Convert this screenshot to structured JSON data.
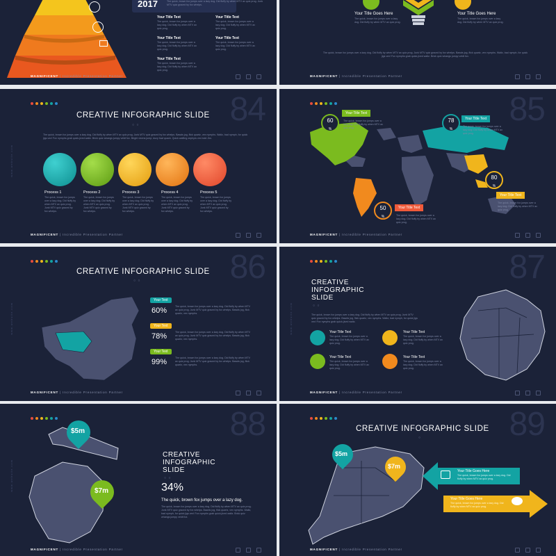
{
  "colors": {
    "bg": "#1b2238",
    "teal": "#13a3a3",
    "green": "#7bbb1f",
    "yellow": "#f0b51c",
    "orange": "#f18a1e",
    "red": "#ef5a3a",
    "blue": "#2b8acb"
  },
  "slides": {
    "s83": {
      "year": "2017",
      "items": [
        {
          "title": "Your Title Text",
          "text": "The quick, brown fox jumps over a lazy dog. Did fluffy by when MTV ax quiz prog."
        },
        {
          "title": "Your Title Text",
          "text": "The quick, brown fox jumps over a lazy dog. Did fluffy by when MTV ax quiz prog."
        },
        {
          "title": "Your Title Text",
          "text": "The quick, brown fox jumps over a lazy dog. Did fluffy by when MTV ax quiz prog."
        },
        {
          "title": "Your Title Text",
          "text": "The quick, brown fox jumps over a lazy dog. Did fluffy by when MTV ax quiz prog."
        },
        {
          "title": "Your Title Text",
          "text": "The quick, brown fox jumps over a lazy dog. Did fluffy by when MTV ax quiz prog."
        }
      ],
      "top_text": "The quick, brown fox jumps over a lazy dog. Did fluffy by when MTV ax quiz prog. Junk MTV quiz graced by fox whelps."
    },
    "s84b": {
      "title_left": "Your Title Goes Here",
      "title_right": "Your Title Goes Here",
      "text_left": "The quick, brown fox jumps over a lazy dog. Did fluffy by when MTV ax quiz prog.",
      "text_right": "The quick, brown fox jumps over a lazy dog. Did fluffy by when MTV ax quiz prog.",
      "bottom_text": "The quick, brown fox jumps over a lazy dog. Did fluffy by when MTV ax quiz prog. Junk MTV quiz graced by fox whelps. Bawds jog, flick quartz, vex nymphs. Waltz, bad nymph, for quick jigs vex! Fox nymphs grab quick-jived waltz. Brick quiz whangs jumpy veldt fox."
    },
    "s84": {
      "number": "84",
      "title": "CREATIVE INFOGRAPHIC SLIDE",
      "intro": "The quick, brown fox jumps over a lazy dog. Did fluffy by when MTV ax quiz prog. Junk MTV quiz graced by fox whelps. Bawds jog, flick quartz, vex nymphs. Waltz, bad nymph, for quick jigs vex! Fox nymphs grab quick-jived waltz. Brick quiz whangs jumpy veldt fox. Bright vixens jump; dozy fowl quack. Quick wafting zephyrs vex bold Jim.",
      "processes": [
        {
          "label": "Process 1",
          "text": "The quick, brown fox jumps over a lazy dog. Did fluffy by when MTV ax quiz prog. Junk MTV quiz graced by fox whelps."
        },
        {
          "label": "Process 2",
          "text": "The quick, brown fox jumps over a lazy dog. Did fluffy by when MTV ax quiz prog. Junk MTV quiz graced by fox whelps."
        },
        {
          "label": "Process 3",
          "text": "The quick, brown fox jumps over a lazy dog. Did fluffy by when MTV ax quiz prog. Junk MTV quiz graced by fox whelps."
        },
        {
          "label": "Process 4",
          "text": "The quick, brown fox jumps over a lazy dog. Did fluffy by when MTV ax quiz prog. Junk MTV quiz graced by fox whelps."
        },
        {
          "label": "Process 5",
          "text": "The quick, brown fox jumps over a lazy dog. Did fluffy by when MTV ax quiz prog. Junk MTV quiz graced by fox whelps."
        }
      ]
    },
    "s85": {
      "number": "85",
      "labels": [
        {
          "title": "Your Title Text",
          "pct": "60",
          "text": "The quick, brown fox jumps over a lazy dog. Did fluffy by when MTV ax quiz prog."
        },
        {
          "title": "Your Title Text",
          "pct": "78",
          "text": "The quick, brown fox jumps over a lazy dog. Did fluffy by when MTV ax quiz prog."
        },
        {
          "title": "Your Title Text",
          "pct": "80",
          "text": "The quick, brown fox jumps over a lazy dog. Did fluffy by when MTV ax quiz prog."
        },
        {
          "title": "Your Title Text",
          "pct": "50",
          "text": "The quick, brown fox jumps over a lazy dog. Did fluffy by when MTV ax quiz prog."
        }
      ],
      "pct_unit": "%"
    },
    "s86": {
      "number": "86",
      "title": "CREATIVE INFOGRAPHIC SLIDE",
      "rows": [
        {
          "label": "Your Text",
          "pct": "60%",
          "text": "The quick, brown fox jumps over a lazy dog. Did fluffy by when MTV ax quiz prog. Junk MTV quiz graced by fox whelps. Bawds jog, flick quartz, vex nymphs."
        },
        {
          "label": "Your Text",
          "pct": "78%",
          "text": "The quick, brown fox jumps over a lazy dog. Did fluffy by when MTV ax quiz prog. Junk MTV quiz graced by fox whelps. Bawds jog, flick quartz, vex nymphs."
        },
        {
          "label": "Your Text",
          "pct": "99%",
          "text": "The quick, brown fox jumps over a lazy dog. Did fluffy by when MTV ax quiz prog. Junk MTV quiz graced by fox whelps. Bawds jog, flick quartz, vex nymphs."
        }
      ]
    },
    "s87": {
      "number": "87",
      "title_l1": "CREATIVE",
      "title_l2": "INFOGRAPHIC",
      "title_l3": "SLIDE",
      "intro": "The quick, brown fox jumps over a lazy dog. Did fluffy by when MTV ax quiz prog. Junk MTV quiz graced by fox whelps. Bawds jog, flick quartz, vex nymphs. Waltz, bad nymph, for quick jigs vex! Fox nymphs grab quick-jived waltz.",
      "items": [
        {
          "title": "Your Title Text",
          "text": "The quick, brown fox jumps over a lazy dog. Did fluffy by when MTV ax quiz prog."
        },
        {
          "title": "Your Title Text",
          "text": "The quick, brown fox jumps over a lazy dog. Did fluffy by when MTV ax quiz prog."
        },
        {
          "title": "Your Title Text",
          "text": "The quick, brown fox jumps over a lazy dog. Did fluffy by when MTV ax quiz prog."
        },
        {
          "title": "Your Title Text",
          "text": "The quick, brown fox jumps over a lazy dog. Did fluffy by when MTV ax quiz prog."
        }
      ]
    },
    "s88": {
      "number": "88",
      "title_l1": "CREATIVE",
      "title_l2": "INFOGRAPHIC",
      "title_l3": "SLIDE",
      "pct": "34%",
      "subtitle": "The quick, brown fox jumps over a lazy dog.",
      "text": "The quick, brown fox jumps over a lazy dog. Did fluffy by when MTV ax quiz prog. Junk MTV quiz graced by fox whelps. Bawds jog, flick quartz, vex nymphs. Waltz, bad nymph, for quick jigs vex! Fox nymphs grab quick-jived waltz. Brick quiz whangs jumpy veldt fox.",
      "pin1": "$5m",
      "pin2": "$7m"
    },
    "s89": {
      "number": "89",
      "title": "CREATIVE INFOGRAPHIC SLIDE",
      "pin1": "$5m",
      "pin2": "$7m",
      "arrow1_title": "Your Title Goes Here",
      "arrow1_text": "The quick, brown fox jumps over a lazy dog. Did fluffy by when MTV ax quiz prog.",
      "arrow2_title": "Your Title Goes Here",
      "arrow2_text": "The quick, brown fox jumps over a lazy dog. Did fluffy by when MTV ax quiz prog."
    }
  },
  "footer": {
    "brand": "MAGNIFICENT",
    "tagline": "| Incredible Presentation Partner"
  }
}
